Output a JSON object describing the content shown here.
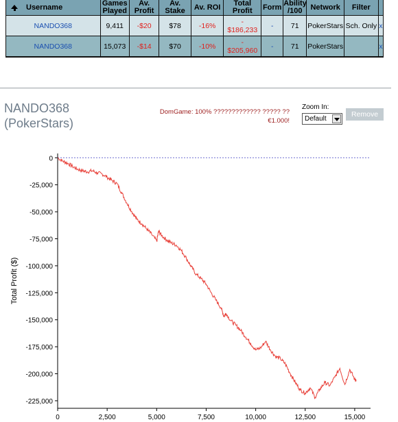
{
  "table": {
    "headers": {
      "username": "Username",
      "games_played": "Games Played",
      "av_profit": "Av. Profit",
      "av_stake": "Av. Stake",
      "av_roi": "Av. ROI",
      "total_profit": "Total Profit",
      "form": "Form",
      "ability": "Ability /100",
      "network": "Network",
      "filter": "Filter"
    },
    "rows": [
      {
        "username": "NANDO368",
        "games_played": "9,411",
        "av_profit": "-$20",
        "av_stake": "$78",
        "av_roi": "-16%",
        "total_profit_sign": "-",
        "total_profit": "$186,233",
        "form": "-",
        "ability": "71",
        "network": "PokerStars",
        "filter": "Sch. Only",
        "remove": "x"
      },
      {
        "username": "NANDO368",
        "games_played": "15,073",
        "av_profit": "-$14",
        "av_stake": "$70",
        "av_roi": "-10%",
        "total_profit_sign": "-",
        "total_profit": "$205,960",
        "form": "-",
        "ability": "71",
        "network": "PokerStars",
        "filter": "",
        "remove": "x"
      }
    ]
  },
  "header": {
    "player_name": "NANDO368",
    "network": "(PokerStars)",
    "domgame_line1": "DomGame: 100% ????????????? ????? ??",
    "domgame_line2": "€1.000!",
    "zoom_label": "Zoom In:",
    "zoom_value": "Default",
    "remove_label": "Remove"
  },
  "colors": {
    "series_line": "#e8413a",
    "zero_line": "#6a6ad0",
    "header_bg": "#7aa3b2",
    "row_light": "#d4e3e8",
    "row_dark": "#94b8c1"
  },
  "chart_data": {
    "type": "line",
    "title": "",
    "xlabel": "",
    "ylabel": "Total Profit ($)",
    "xlim": [
      0,
      15800
    ],
    "ylim": [
      -232000,
      4000
    ],
    "x_ticks": [
      "0",
      "2,500",
      "5,000",
      "7,500",
      "10,000",
      "12,500",
      "15,000"
    ],
    "y_ticks": [
      "0",
      "-25,000",
      "-50,000",
      "-75,000",
      "-100,000",
      "-125,000",
      "-150,000",
      "-175,000",
      "-200,000",
      "-225,000"
    ],
    "x_tick_values": [
      0,
      2500,
      5000,
      7500,
      10000,
      12500,
      15000
    ],
    "y_tick_values": [
      0,
      -25000,
      -50000,
      -75000,
      -100000,
      -125000,
      -150000,
      -175000,
      -200000,
      -225000
    ],
    "reference_line": 0,
    "grid": false,
    "series": [
      {
        "x": [
          0,
          250,
          500,
          750,
          1000,
          1250,
          1500,
          1750,
          2000,
          2250,
          2500,
          2750,
          3000,
          3250,
          3500,
          3750,
          4000,
          4250,
          4500,
          4750,
          5000,
          5100,
          5250,
          5500,
          5750,
          6000,
          6250,
          6500,
          6750,
          7000,
          7250,
          7500,
          7750,
          8000,
          8250,
          8400,
          8500,
          8750,
          9000,
          9250,
          9500,
          9750,
          10000,
          10250,
          10500,
          10750,
          11000,
          11250,
          11500,
          11750,
          12000,
          12250,
          12500,
          12750,
          13000,
          13250,
          13500,
          13750,
          14000,
          14250,
          14500,
          14750,
          15000,
          15073
        ],
        "y": [
          0,
          -3000,
          -5000,
          -8000,
          -10500,
          -12000,
          -13000,
          -12000,
          -14000,
          -15000,
          -18000,
          -21000,
          -24000,
          -33000,
          -42000,
          -50000,
          -57000,
          -61000,
          -66000,
          -71000,
          -77000,
          -68000,
          -72000,
          -76000,
          -79000,
          -81000,
          -86000,
          -93000,
          -101000,
          -108000,
          -112000,
          -117000,
          -125000,
          -132000,
          -139000,
          -147000,
          -144000,
          -151000,
          -155000,
          -160000,
          -166000,
          -172000,
          -178000,
          -176000,
          -170000,
          -178000,
          -184000,
          -186000,
          -191000,
          -200000,
          -208000,
          -215000,
          -218000,
          -213000,
          -222000,
          -214000,
          -208000,
          -211000,
          -203000,
          -195000,
          -210000,
          -196000,
          -205000,
          -206000
        ]
      }
    ]
  }
}
